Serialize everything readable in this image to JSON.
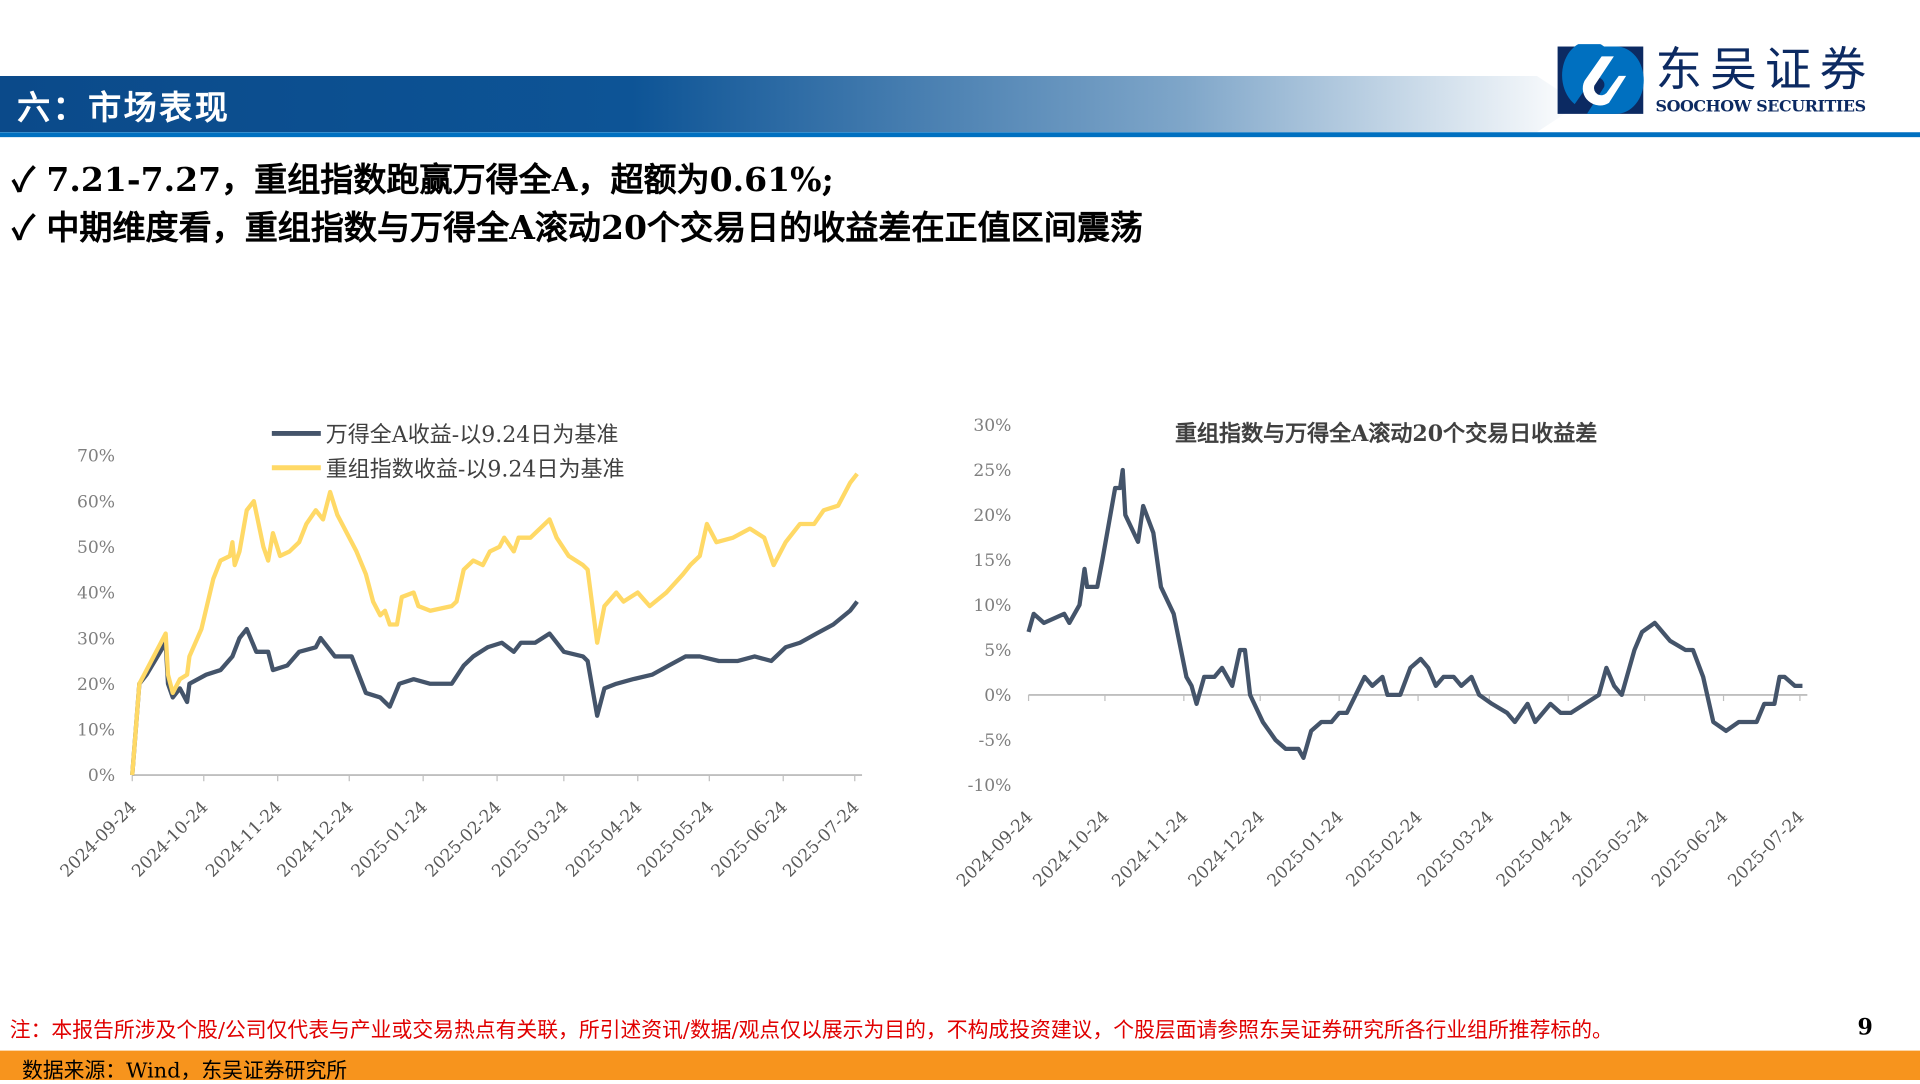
{
  "header": {
    "title": "六：市场表现",
    "logo_cn": "东吴证券",
    "logo_en": "SOOCHOW SECURITIES",
    "brand_color": "#0070c0"
  },
  "bullets": [
    {
      "icon": "check-icon",
      "mark": "✓",
      "text": "7.21-7.27，重组指数跑赢万得全A，超额为0.61%;"
    },
    {
      "icon": "check-icon",
      "mark": "✓",
      "text": "中期维度看，重组指数与万得全A滚动20个交易日的收益差在正值区间震荡"
    }
  ],
  "footer": {
    "note": "注：本报告所涉及个股/公司仅代表与产业或交易热点有关联，所引述资讯/数据/观点仅以展示为目的，不构成投资建议，个股层面请参照东吴证券研究所各行业组所推荐标的。",
    "page": "9",
    "source": "数据来源：Wind，东吴证券研究所"
  },
  "chart_data": [
    {
      "type": "line",
      "title": "",
      "xlim": [
        "2024-09-24",
        "2025-07-25"
      ],
      "ylim": [
        0,
        70
      ],
      "yticks": [
        0,
        10,
        20,
        30,
        40,
        50,
        60,
        70
      ],
      "ytick_format": "percent",
      "xticks": [
        "2024-09-24",
        "2024-10-24",
        "2024-11-24",
        "2024-12-24",
        "2025-01-24",
        "2025-02-24",
        "2025-03-24",
        "2025-04-24",
        "2025-05-24",
        "2025-06-24",
        "2025-07-24"
      ],
      "grid": false,
      "legend": "top",
      "series": [
        {
          "name": "万得全A收益-以9.24日为基准",
          "color": "#44546a",
          "points": [
            [
              "2024-09-24",
              0
            ],
            [
              "2024-09-27",
              20
            ],
            [
              "2024-09-30",
              22
            ],
            [
              "2024-10-08",
              29
            ],
            [
              "2024-10-09",
              20
            ],
            [
              "2024-10-11",
              17
            ],
            [
              "2024-10-14",
              19
            ],
            [
              "2024-10-17",
              16
            ],
            [
              "2024-10-18",
              20
            ],
            [
              "2024-10-25",
              22
            ],
            [
              "2024-10-31",
              23
            ],
            [
              "2024-11-05",
              26
            ],
            [
              "2024-11-08",
              30
            ],
            [
              "2024-11-11",
              32
            ],
            [
              "2024-11-15",
              27
            ],
            [
              "2024-11-20",
              27
            ],
            [
              "2024-11-22",
              23
            ],
            [
              "2024-11-28",
              24
            ],
            [
              "2024-12-03",
              27
            ],
            [
              "2024-12-10",
              28
            ],
            [
              "2024-12-12",
              30
            ],
            [
              "2024-12-18",
              26
            ],
            [
              "2024-12-25",
              26
            ],
            [
              "2024-12-31",
              18
            ],
            [
              "2025-01-06",
              17
            ],
            [
              "2025-01-10",
              15
            ],
            [
              "2025-01-14",
              20
            ],
            [
              "2025-01-20",
              21
            ],
            [
              "2025-01-27",
              20
            ],
            [
              "2025-02-05",
              20
            ],
            [
              "2025-02-10",
              24
            ],
            [
              "2025-02-14",
              26
            ],
            [
              "2025-02-20",
              28
            ],
            [
              "2025-02-26",
              29
            ],
            [
              "2025-03-03",
              27
            ],
            [
              "2025-03-06",
              29
            ],
            [
              "2025-03-12",
              29
            ],
            [
              "2025-03-18",
              31
            ],
            [
              "2025-03-24",
              27
            ],
            [
              "2025-04-01",
              26
            ],
            [
              "2025-04-03",
              25
            ],
            [
              "2025-04-07",
              13
            ],
            [
              "2025-04-10",
              19
            ],
            [
              "2025-04-15",
              20
            ],
            [
              "2025-04-22",
              21
            ],
            [
              "2025-04-30",
              22
            ],
            [
              "2025-05-07",
              24
            ],
            [
              "2025-05-14",
              26
            ],
            [
              "2025-05-20",
              26
            ],
            [
              "2025-05-28",
              25
            ],
            [
              "2025-06-05",
              25
            ],
            [
              "2025-06-12",
              26
            ],
            [
              "2025-06-19",
              25
            ],
            [
              "2025-06-25",
              28
            ],
            [
              "2025-07-01",
              29
            ],
            [
              "2025-07-08",
              31
            ],
            [
              "2025-07-15",
              33
            ],
            [
              "2025-07-22",
              36
            ],
            [
              "2025-07-25",
              38
            ]
          ]
        },
        {
          "name": "重组指数收益-以9.24日为基准",
          "color": "#ffd966",
          "points": [
            [
              "2024-09-24",
              0
            ],
            [
              "2024-09-27",
              20
            ],
            [
              "2024-09-30",
              23
            ],
            [
              "2024-10-08",
              31
            ],
            [
              "2024-10-09",
              22
            ],
            [
              "2024-10-11",
              18
            ],
            [
              "2024-10-14",
              21
            ],
            [
              "2024-10-17",
              22
            ],
            [
              "2024-10-18",
              26
            ],
            [
              "2024-10-23",
              32
            ],
            [
              "2024-10-28",
              43
            ],
            [
              "2024-10-31",
              47
            ],
            [
              "2024-11-04",
              48
            ],
            [
              "2024-11-05",
              51
            ],
            [
              "2024-11-06",
              46
            ],
            [
              "2024-11-08",
              49
            ],
            [
              "2024-11-11",
              58
            ],
            [
              "2024-11-14",
              60
            ],
            [
              "2024-11-18",
              50
            ],
            [
              "2024-11-20",
              47
            ],
            [
              "2024-11-22",
              53
            ],
            [
              "2024-11-25",
              48
            ],
            [
              "2024-11-29",
              49
            ],
            [
              "2024-12-03",
              51
            ],
            [
              "2024-12-06",
              55
            ],
            [
              "2024-12-10",
              58
            ],
            [
              "2024-12-13",
              56
            ],
            [
              "2024-12-16",
              62
            ],
            [
              "2024-12-19",
              57
            ],
            [
              "2024-12-23",
              53
            ],
            [
              "2024-12-25",
              51
            ],
            [
              "2024-12-27",
              49
            ],
            [
              "2024-12-31",
              44
            ],
            [
              "2025-01-03",
              38
            ],
            [
              "2025-01-06",
              35
            ],
            [
              "2025-01-08",
              36
            ],
            [
              "2025-01-10",
              33
            ],
            [
              "2025-01-13",
              33
            ],
            [
              "2025-01-15",
              39
            ],
            [
              "2025-01-20",
              40
            ],
            [
              "2025-01-22",
              37
            ],
            [
              "2025-01-27",
              36
            ],
            [
              "2025-02-05",
              37
            ],
            [
              "2025-02-07",
              38
            ],
            [
              "2025-02-10",
              45
            ],
            [
              "2025-02-14",
              47
            ],
            [
              "2025-02-18",
              46
            ],
            [
              "2025-02-21",
              49
            ],
            [
              "2025-02-25",
              50
            ],
            [
              "2025-02-27",
              52
            ],
            [
              "2025-03-03",
              49
            ],
            [
              "2025-03-05",
              52
            ],
            [
              "2025-03-10",
              52
            ],
            [
              "2025-03-14",
              54
            ],
            [
              "2025-03-18",
              56
            ],
            [
              "2025-03-21",
              52
            ],
            [
              "2025-03-26",
              48
            ],
            [
              "2025-04-01",
              46
            ],
            [
              "2025-04-03",
              45
            ],
            [
              "2025-04-07",
              29
            ],
            [
              "2025-04-10",
              37
            ],
            [
              "2025-04-15",
              40
            ],
            [
              "2025-04-18",
              38
            ],
            [
              "2025-04-24",
              40
            ],
            [
              "2025-04-29",
              37
            ],
            [
              "2025-05-06",
              40
            ],
            [
              "2025-05-13",
              44
            ],
            [
              "2025-05-16",
              46
            ],
            [
              "2025-05-20",
              48
            ],
            [
              "2025-05-23",
              55
            ],
            [
              "2025-05-27",
              51
            ],
            [
              "2025-06-03",
              52
            ],
            [
              "2025-06-10",
              54
            ],
            [
              "2025-06-16",
              52
            ],
            [
              "2025-06-20",
              46
            ],
            [
              "2025-06-25",
              51
            ],
            [
              "2025-07-01",
              55
            ],
            [
              "2025-07-07",
              55
            ],
            [
              "2025-07-11",
              58
            ],
            [
              "2025-07-17",
              59
            ],
            [
              "2025-07-22",
              64
            ],
            [
              "2025-07-25",
              66
            ]
          ]
        }
      ]
    },
    {
      "type": "line",
      "title": "重组指数与万得全A滚动20个交易日收益差",
      "xlim": [
        "2024-09-24",
        "2025-07-25"
      ],
      "ylim": [
        -10,
        30
      ],
      "yticks": [
        -10,
        -5,
        0,
        5,
        10,
        15,
        20,
        25,
        30
      ],
      "ytick_format": "percent",
      "xticks": [
        "2024-09-24",
        "2024-10-24",
        "2024-11-24",
        "2024-12-24",
        "2025-01-24",
        "2025-02-24",
        "2025-03-24",
        "2025-04-24",
        "2025-05-24",
        "2025-06-24",
        "2025-07-24"
      ],
      "grid": false,
      "series": [
        {
          "color": "#44546a",
          "points": [
            [
              "2024-09-24",
              7
            ],
            [
              "2024-09-26",
              9
            ],
            [
              "2024-09-30",
              8
            ],
            [
              "2024-10-08",
              9
            ],
            [
              "2024-10-10",
              8
            ],
            [
              "2024-10-14",
              10
            ],
            [
              "2024-10-16",
              14
            ],
            [
              "2024-10-17",
              12
            ],
            [
              "2024-10-21",
              12
            ],
            [
              "2024-10-23",
              15
            ],
            [
              "2024-10-28",
              23
            ],
            [
              "2024-10-30",
              23
            ],
            [
              "2024-10-31",
              25
            ],
            [
              "2024-11-01",
              20
            ],
            [
              "2024-11-06",
              17
            ],
            [
              "2024-11-08",
              21
            ],
            [
              "2024-11-12",
              18
            ],
            [
              "2024-11-15",
              12
            ],
            [
              "2024-11-20",
              9
            ],
            [
              "2024-11-25",
              2
            ],
            [
              "2024-11-27",
              1
            ],
            [
              "2024-11-29",
              -1
            ],
            [
              "2024-12-02",
              2
            ],
            [
              "2024-12-06",
              2
            ],
            [
              "2024-12-09",
              3
            ],
            [
              "2024-12-13",
              1
            ],
            [
              "2024-12-16",
              5
            ],
            [
              "2024-12-18",
              5
            ],
            [
              "2024-12-20",
              0
            ],
            [
              "2024-12-25",
              -3
            ],
            [
              "2024-12-30",
              -5
            ],
            [
              "2025-01-03",
              -6
            ],
            [
              "2025-01-08",
              -6
            ],
            [
              "2025-01-10",
              -7
            ],
            [
              "2025-01-13",
              -4
            ],
            [
              "2025-01-17",
              -3
            ],
            [
              "2025-01-21",
              -3
            ],
            [
              "2025-01-24",
              -2
            ],
            [
              "2025-01-27",
              -2
            ],
            [
              "2025-02-03",
              2
            ],
            [
              "2025-02-06",
              1
            ],
            [
              "2025-02-10",
              2
            ],
            [
              "2025-02-12",
              0
            ],
            [
              "2025-02-17",
              0
            ],
            [
              "2025-02-21",
              3
            ],
            [
              "2025-02-25",
              4
            ],
            [
              "2025-02-28",
              3
            ],
            [
              "2025-03-03",
              1
            ],
            [
              "2025-03-06",
              2
            ],
            [
              "2025-03-10",
              2
            ],
            [
              "2025-03-13",
              1
            ],
            [
              "2025-03-17",
              2
            ],
            [
              "2025-03-20",
              0
            ],
            [
              "2025-03-25",
              -1
            ],
            [
              "2025-03-31",
              -2
            ],
            [
              "2025-04-03",
              -3
            ],
            [
              "2025-04-08",
              -1
            ],
            [
              "2025-04-11",
              -3
            ],
            [
              "2025-04-17",
              -1
            ],
            [
              "2025-04-21",
              -2
            ],
            [
              "2025-04-25",
              -2
            ],
            [
              "2025-05-06",
              0
            ],
            [
              "2025-05-09",
              3
            ],
            [
              "2025-05-12",
              1
            ],
            [
              "2025-05-15",
              0
            ],
            [
              "2025-05-20",
              5
            ],
            [
              "2025-05-23",
              7
            ],
            [
              "2025-05-28",
              8
            ],
            [
              "2025-06-03",
              6
            ],
            [
              "2025-06-09",
              5
            ],
            [
              "2025-06-12",
              5
            ],
            [
              "2025-06-16",
              2
            ],
            [
              "2025-06-20",
              -3
            ],
            [
              "2025-06-25",
              -4
            ],
            [
              "2025-06-30",
              -3
            ],
            [
              "2025-07-03",
              -3
            ],
            [
              "2025-07-07",
              -3
            ],
            [
              "2025-07-10",
              -1
            ],
            [
              "2025-07-14",
              -1
            ],
            [
              "2025-07-16",
              2
            ],
            [
              "2025-07-18",
              2
            ],
            [
              "2025-07-22",
              1
            ],
            [
              "2025-07-25",
              1
            ]
          ]
        }
      ]
    }
  ]
}
